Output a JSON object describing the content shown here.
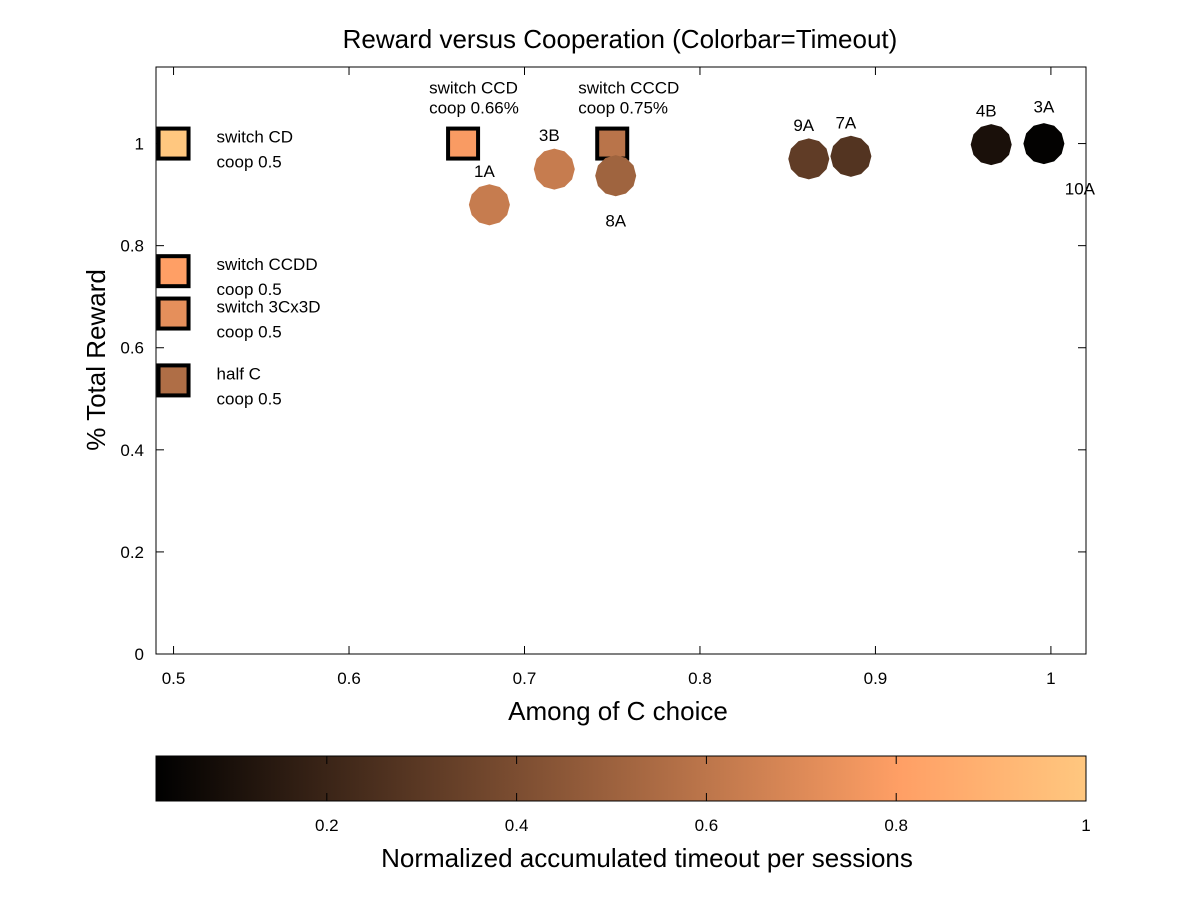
{
  "chart_data": {
    "type": "scatter",
    "title": "Reward versus Cooperation (Colorbar=Timeout)",
    "xlabel": "Among of C choice",
    "ylabel": "% Total Reward",
    "xlim": [
      0.49,
      1.02
    ],
    "ylim": [
      0,
      1.15
    ],
    "xticks": [
      "0.5",
      "0.6",
      "0.7",
      "0.8",
      "0.9",
      "1"
    ],
    "yticks": [
      "0",
      "0.2",
      "0.4",
      "0.6",
      "0.8",
      "1"
    ],
    "xtick_values": [
      0.5,
      0.6,
      0.7,
      0.8,
      0.9,
      1.0
    ],
    "ytick_values": [
      0,
      0.2,
      0.4,
      0.6,
      0.8,
      1.0
    ],
    "grid": false,
    "colorbar": {
      "label": "Normalized accumulated timeout per sessions",
      "colormap": "copper",
      "range": [
        0.02,
        1.0
      ],
      "ticks": [
        "0.2",
        "0.4",
        "0.6",
        "0.8",
        "1"
      ],
      "tick_values": [
        0.2,
        0.4,
        0.6,
        0.8,
        1.0
      ]
    },
    "points": [
      {
        "marker": "square",
        "x": 0.5,
        "y": 1.0,
        "timeout": 1.0,
        "label": [
          "switch CD",
          "coop 0.5"
        ],
        "label_pos": "right"
      },
      {
        "marker": "square",
        "x": 0.5,
        "y": 0.75,
        "timeout": 0.8,
        "label": [
          "switch CCDD",
          "coop 0.5"
        ],
        "label_pos": "right"
      },
      {
        "marker": "square",
        "x": 0.5,
        "y": 0.667,
        "timeout": 0.72,
        "label": [
          "switch 3Cx3D",
          "coop 0.5"
        ],
        "label_pos": "right"
      },
      {
        "marker": "square",
        "x": 0.5,
        "y": 0.536,
        "timeout": 0.55,
        "label": [
          "half C",
          "coop 0.5"
        ],
        "label_pos": "right"
      },
      {
        "marker": "square",
        "x": 0.665,
        "y": 1.0,
        "timeout": 0.78,
        "label": [
          "switch CCD",
          "coop 0.66%"
        ],
        "label_pos": "above"
      },
      {
        "marker": "square",
        "x": 0.75,
        "y": 1.0,
        "timeout": 0.58,
        "label": [
          "switch CCCD",
          "coop 0.75%"
        ],
        "label_pos": "above"
      },
      {
        "marker": "circle",
        "x": 0.68,
        "y": 0.88,
        "timeout": 0.62,
        "label": [
          "1A"
        ],
        "label_pos": "above"
      },
      {
        "marker": "circle",
        "x": 0.717,
        "y": 0.95,
        "timeout": 0.62,
        "label": [
          "3B"
        ],
        "label_pos": "above"
      },
      {
        "marker": "circle",
        "x": 0.752,
        "y": 0.937,
        "timeout": 0.5,
        "label": [
          "8A"
        ],
        "label_pos": "below"
      },
      {
        "marker": "circle",
        "x": 0.862,
        "y": 0.97,
        "timeout": 0.3,
        "label": [
          "9A"
        ],
        "label_pos": "above"
      },
      {
        "marker": "circle",
        "x": 0.886,
        "y": 0.975,
        "timeout": 0.26,
        "label": [
          "7A"
        ],
        "label_pos": "above"
      },
      {
        "marker": "circle",
        "x": 0.966,
        "y": 0.998,
        "timeout": 0.08,
        "label": [
          "4B"
        ],
        "label_pos": "above"
      },
      {
        "marker": "circle",
        "x": 0.996,
        "y": 1.0,
        "timeout": 0.01,
        "label": [
          "3A",
          "10A"
        ],
        "label_pos": "split"
      }
    ]
  }
}
